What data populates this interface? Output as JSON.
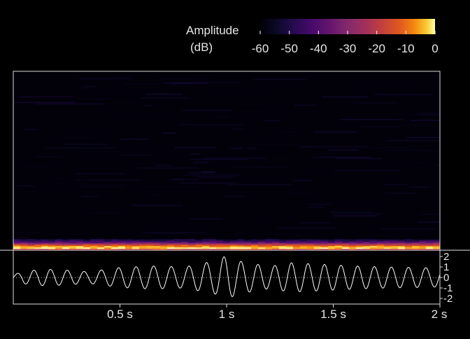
{
  "chart_data": [
    {
      "type": "heatmap",
      "title": "",
      "xlabel": "",
      "ylabel": "",
      "xlim": [
        0,
        2
      ],
      "colorbar": {
        "label_line1": "Amplitude",
        "label_line2": "(dB)",
        "range": [
          -60,
          0
        ],
        "ticks": [
          -60,
          -50,
          -40,
          -30,
          -20,
          -10,
          0
        ],
        "tick_labels": [
          "-60",
          "-50",
          "-40",
          "-30",
          "-20",
          "-10",
          "0"
        ],
        "colormap": "inferno",
        "placement": "top-right"
      },
      "description_values": {
        "background_level_db": -60,
        "low_frequency_band_peak_db": 0
      }
    },
    {
      "type": "line",
      "title": "",
      "xlabel": "",
      "ylabel": "",
      "xlim": [
        0,
        2
      ],
      "ylim": [
        -2,
        2
      ],
      "x_ticks": [
        0.5,
        1,
        1.5,
        2
      ],
      "x_tick_labels": [
        "0.5 s",
        "1 s",
        "1.5 s",
        "2 s"
      ],
      "y_ticks": [
        2,
        1,
        0,
        -1,
        -2
      ],
      "y_tick_labels": [
        "2",
        "1",
        "0",
        "-1",
        "-2"
      ],
      "zero_line": "dotted",
      "series": [
        {
          "envelope_points": [
            {
              "t": 0.0,
              "a": 0.25
            },
            {
              "t": 0.05,
              "a": 0.6
            },
            {
              "t": 0.15,
              "a": 0.8
            },
            {
              "t": 0.25,
              "a": 0.7
            },
            {
              "t": 0.35,
              "a": 0.55
            },
            {
              "t": 0.5,
              "a": 0.95
            },
            {
              "t": 0.65,
              "a": 1.1
            },
            {
              "t": 0.8,
              "a": 1.0
            },
            {
              "t": 0.95,
              "a": 1.6
            },
            {
              "t": 1.0,
              "a": 2.1
            },
            {
              "t": 1.05,
              "a": 1.6
            },
            {
              "t": 1.2,
              "a": 1.05
            },
            {
              "t": 1.3,
              "a": 1.4
            },
            {
              "t": 1.45,
              "a": 1.25
            },
            {
              "t": 1.6,
              "a": 1.1
            },
            {
              "t": 1.75,
              "a": 1.0
            },
            {
              "t": 1.9,
              "a": 0.95
            },
            {
              "t": 2.0,
              "a": 0.9
            }
          ],
          "approx_frequency_hz": 12.5
        }
      ]
    }
  ]
}
